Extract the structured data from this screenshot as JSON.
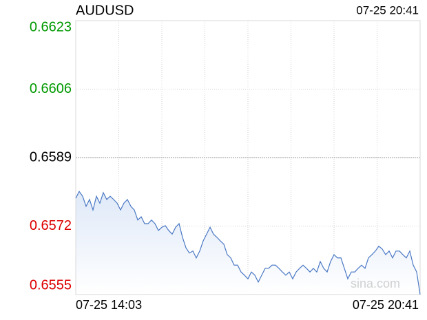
{
  "chart_data": {
    "type": "line",
    "title": "AUDUSD",
    "timestamp": "07-25 20:41",
    "x_labels": [
      "07-25 14:03",
      "07-25 20:41"
    ],
    "ylim": [
      0.6555,
      0.6623
    ],
    "yticks": [
      0.6555,
      0.6572,
      0.6589,
      0.6606,
      0.6623
    ],
    "prev_close": 0.6589,
    "label_colors": {
      "up": "#009900",
      "down": "#dd0000",
      "flat": "#000000"
    },
    "color": "#4a78c4",
    "grid": true,
    "watermark": "sina.com",
    "values": [
      0.65789,
      0.65806,
      0.65794,
      0.65769,
      0.65786,
      0.6576,
      0.65794,
      0.65777,
      0.65803,
      0.65786,
      0.65794,
      0.65786,
      0.65777,
      0.6576,
      0.65777,
      0.65786,
      0.65769,
      0.6576,
      0.65735,
      0.65743,
      0.65726,
      0.65726,
      0.65735,
      0.65726,
      0.65709,
      0.65717,
      0.65721,
      0.65709,
      0.657,
      0.65717,
      0.65726,
      0.65692,
      0.65666,
      0.65653,
      0.65658,
      0.65641,
      0.65658,
      0.65683,
      0.657,
      0.65717,
      0.657,
      0.65692,
      0.65683,
      0.65675,
      0.65649,
      0.65641,
      0.65623,
      0.65623,
      0.65606,
      0.65598,
      0.65589,
      0.65606,
      0.65598,
      0.65581,
      0.65598,
      0.65615,
      0.65615,
      0.65623,
      0.65623,
      0.65615,
      0.65606,
      0.65598,
      0.65606,
      0.65589,
      0.65606,
      0.65615,
      0.65623,
      0.65615,
      0.65606,
      0.65615,
      0.65606,
      0.65632,
      0.65615,
      0.65606,
      0.65632,
      0.65649,
      0.65641,
      0.65641,
      0.65615,
      0.65589,
      0.65606,
      0.65606,
      0.65615,
      0.65623,
      0.65615,
      0.65641,
      0.65649,
      0.65658,
      0.6567,
      0.65663,
      0.65649,
      0.65658,
      0.65641,
      0.65658,
      0.65658,
      0.65649,
      0.65641,
      0.65658,
      0.65623,
      0.65606,
      0.6555
    ]
  }
}
